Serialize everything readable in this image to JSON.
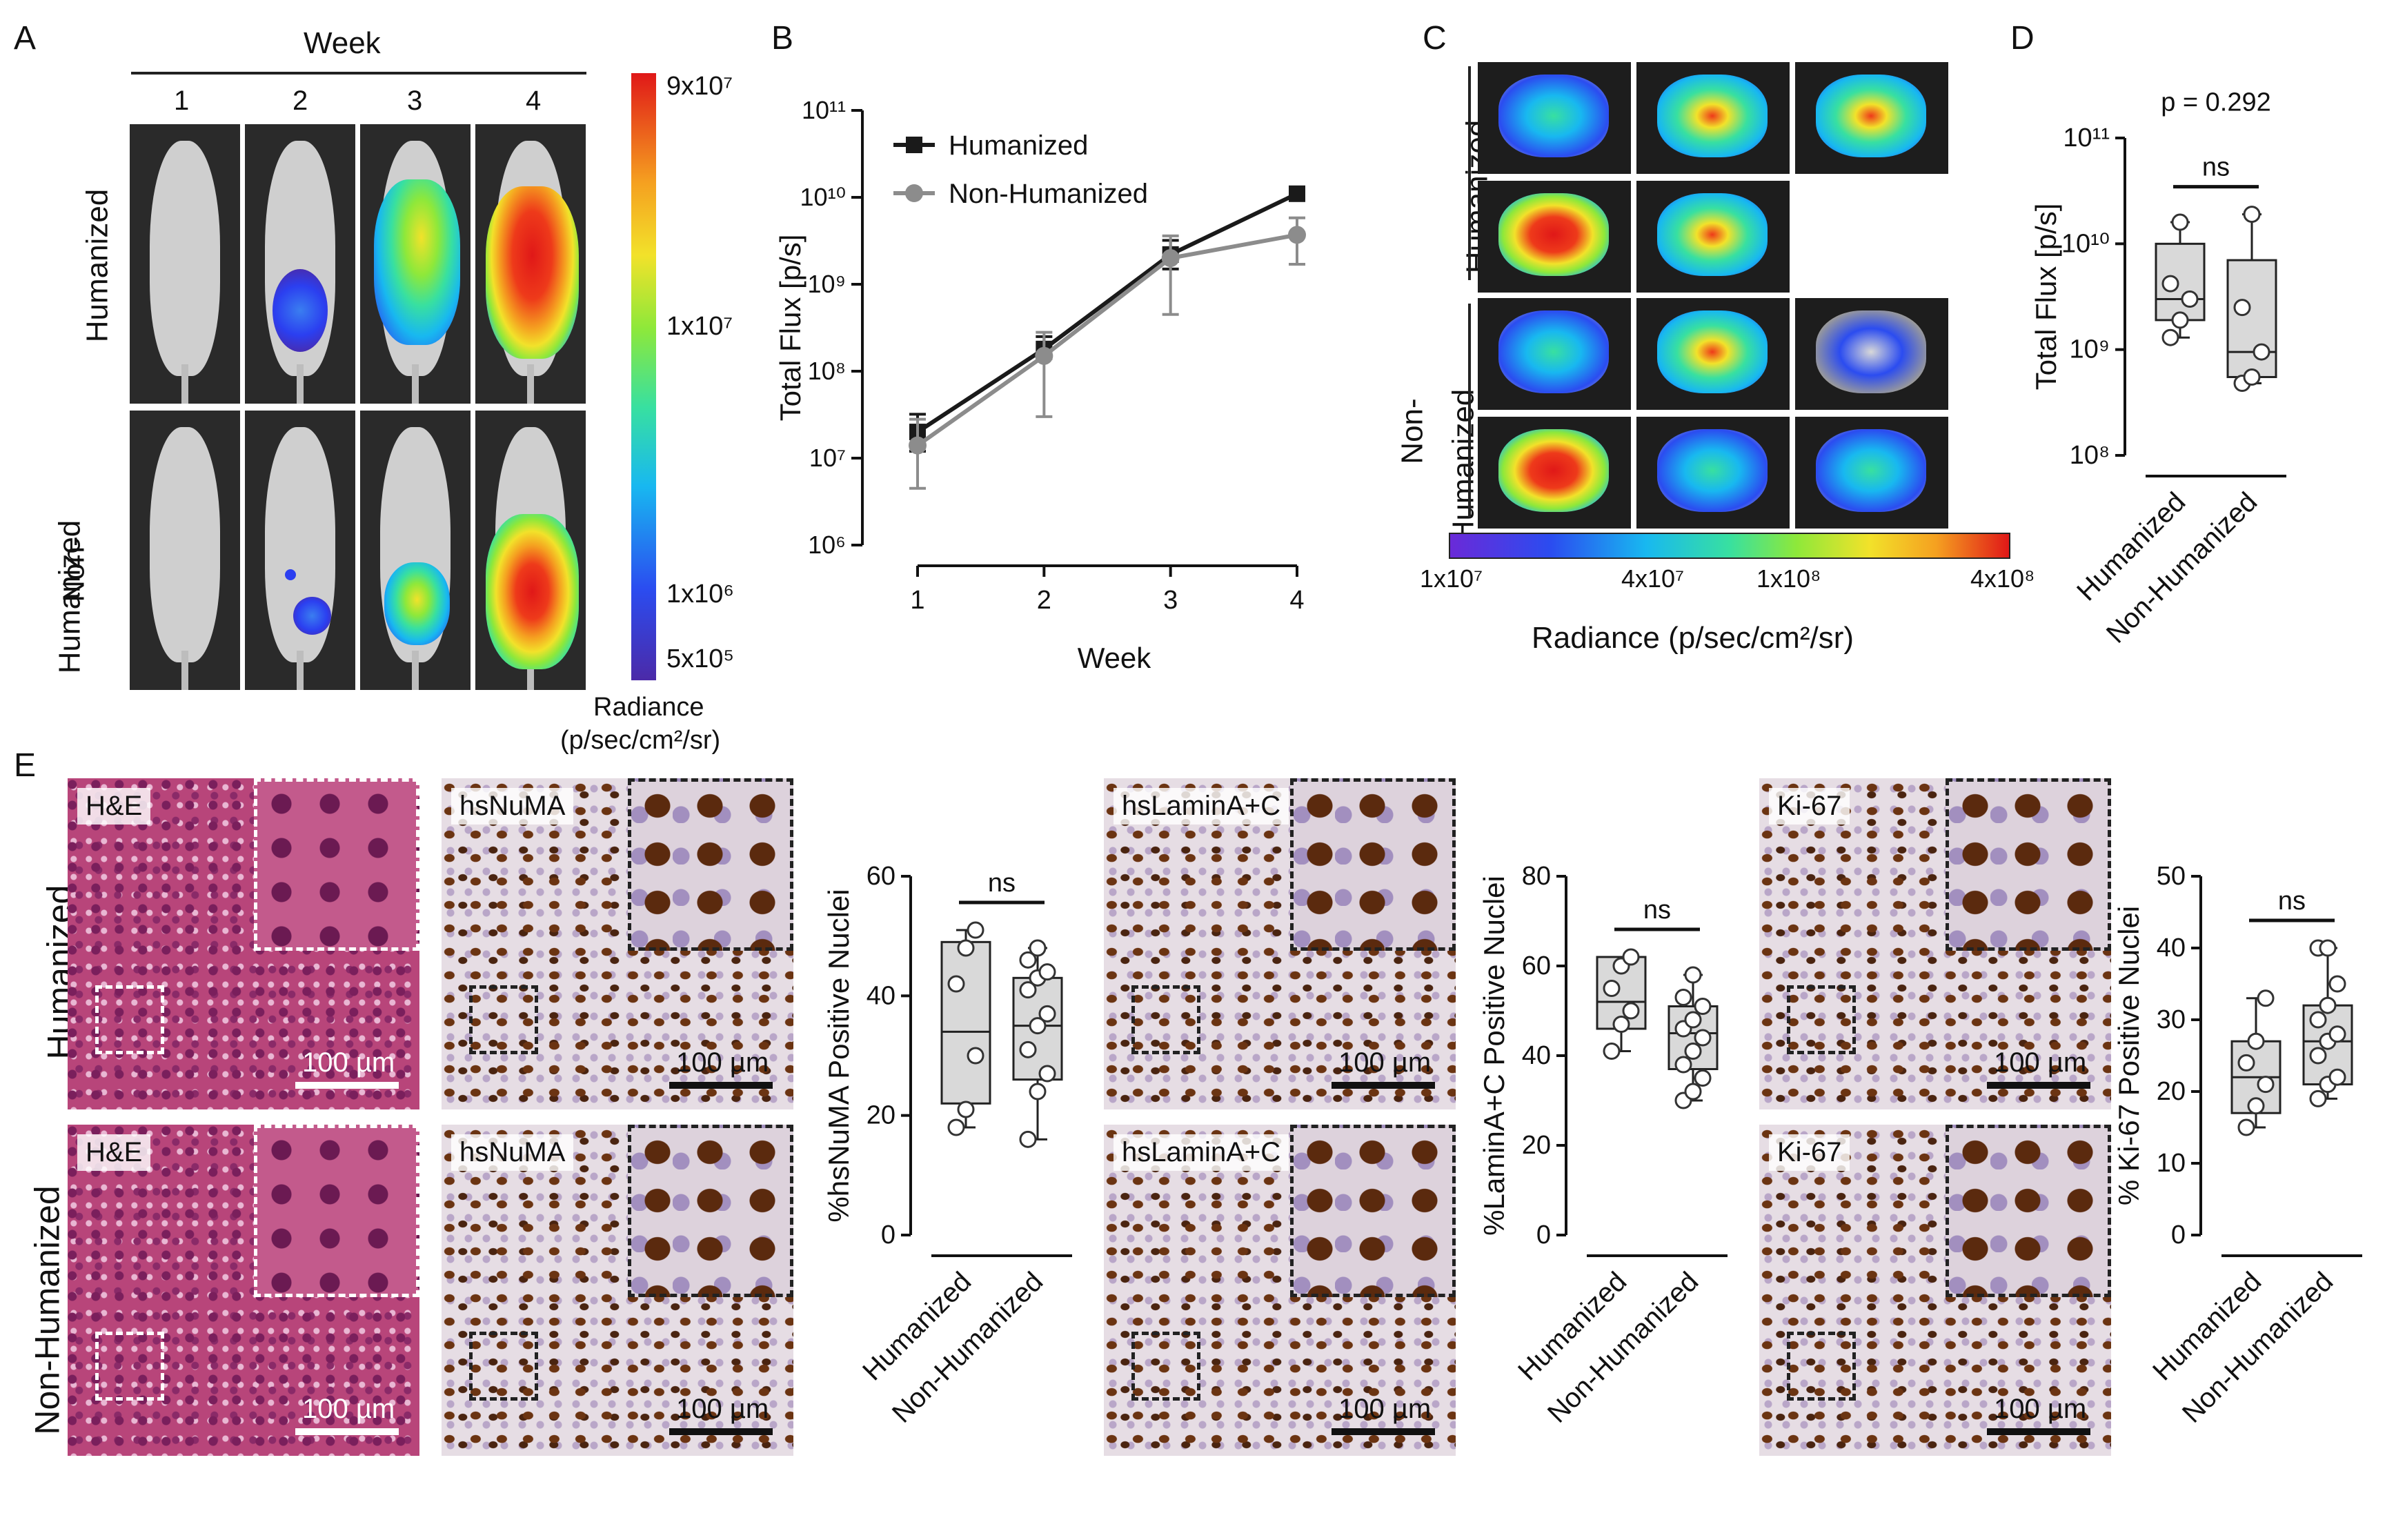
{
  "panels": {
    "A": "A",
    "B": "B",
    "C": "C",
    "D": "D",
    "E": "E"
  },
  "panelA": {
    "week_header": "Week",
    "weeks": [
      "1",
      "2",
      "3",
      "4"
    ],
    "rows": [
      "Humanized",
      "Non-\nHumanized"
    ],
    "row1": "Humanized",
    "row2a": "Non-",
    "row2b": "Humanized",
    "colorbar_ticks": [
      "9x10⁷",
      "1x10⁷",
      "1x10⁶",
      "5x10⁵"
    ],
    "colorbar_title1": "Radiance",
    "colorbar_title2": "(p/sec/cm²/sr)"
  },
  "panelC": {
    "row1": "Humanized",
    "row2a": "Non-",
    "row2b": "Humanized",
    "colorbar_ticks": [
      "1x10⁷",
      "4x10⁷",
      "1x10⁸",
      "4x10⁸"
    ],
    "colorbar_title": "Radiance (p/sec/cm²/sr)"
  },
  "panelE": {
    "rows": [
      "Humanized",
      "Non-Humanized"
    ],
    "stains": [
      "H&E",
      "hsNuMA",
      "hsLaminA+C",
      "Ki-67"
    ],
    "scale_bar": "100 µm"
  },
  "chart_data": [
    {
      "type": "line",
      "panel": "B",
      "xlabel": "Week",
      "ylabel": "Total Flux [p/s]",
      "x": [
        1,
        2,
        3,
        4
      ],
      "yscale": "log",
      "ylim": [
        1000000,
        100000000000
      ],
      "yticks": [
        "10⁶",
        "10⁷",
        "10⁸",
        "10⁹",
        "10¹⁰",
        "10¹¹"
      ],
      "legend_position": "top-left",
      "series": [
        {
          "name": "Humanized",
          "color": "#1a1a1a",
          "marker": "square",
          "values": [
            20000000,
            180000000,
            2200000000,
            11000000000
          ],
          "err_low": [
            12000000,
            140000000,
            1500000000,
            9500000000
          ],
          "err_high": [
            32000000,
            250000000,
            3200000000,
            12000000000
          ]
        },
        {
          "name": "Non-Humanized",
          "color": "#8c8c8c",
          "marker": "circle",
          "values": [
            14000000,
            150000000,
            2000000000,
            3700000000
          ],
          "err_low": [
            4500000,
            30000000,
            450000000,
            1700000000
          ],
          "err_high": [
            28000000,
            280000000,
            3600000000,
            5800000000
          ]
        }
      ]
    },
    {
      "type": "box",
      "panel": "D",
      "ylabel": "Total Flux [p/s]",
      "yscale": "log",
      "ylim": [
        100000000,
        100000000000
      ],
      "yticks": [
        "10⁸",
        "10⁹",
        "10¹⁰",
        "10¹¹"
      ],
      "categories": [
        "Humanized",
        "Non-Humanized"
      ],
      "annotation": "p = 0.292",
      "significance": "ns",
      "boxes": [
        {
          "min": 1300000000,
          "q1": 1900000000,
          "median": 3000000000,
          "q3": 10000000000,
          "max": 16000000000,
          "points": [
            1300000000,
            1900000000,
            3000000000,
            4200000000,
            16000000000
          ]
        },
        {
          "min": 480000000,
          "q1": 550000000,
          "median": 950000000,
          "q3": 7000000000,
          "max": 19000000000,
          "points": [
            480000000,
            550000000,
            950000000,
            2500000000,
            19000000000
          ]
        }
      ]
    },
    {
      "type": "box",
      "panel": "E-hsNuMA",
      "ylabel": "%hsNuMA Positive Nuclei",
      "ylim": [
        0,
        60
      ],
      "yticks": [
        "0",
        "20",
        "40",
        "60"
      ],
      "categories": [
        "Humanized",
        "Non-Humanized"
      ],
      "significance": "ns",
      "boxes": [
        {
          "min": 18,
          "q1": 22,
          "median": 34,
          "q3": 49,
          "max": 51,
          "points": [
            18,
            21,
            30,
            42,
            48,
            51
          ]
        },
        {
          "min": 16,
          "q1": 26,
          "median": 35,
          "q3": 43,
          "max": 48,
          "points": [
            16,
            24,
            27,
            31,
            35,
            37,
            41,
            43,
            44,
            46,
            48
          ]
        }
      ]
    },
    {
      "type": "box",
      "panel": "E-hsLaminA+C",
      "ylabel": "%LaminA+C Positive Nuclei",
      "ylim": [
        0,
        80
      ],
      "yticks": [
        "0",
        "20",
        "40",
        "60",
        "80"
      ],
      "categories": [
        "Humanized",
        "Non-Humanized"
      ],
      "significance": "ns",
      "boxes": [
        {
          "min": 41,
          "q1": 46,
          "median": 52,
          "q3": 62,
          "max": 62,
          "points": [
            41,
            47,
            50,
            55,
            60,
            62
          ]
        },
        {
          "min": 30,
          "q1": 37,
          "median": 45,
          "q3": 51,
          "max": 58,
          "points": [
            30,
            32,
            35,
            38,
            41,
            44,
            46,
            48,
            51,
            53,
            58
          ]
        }
      ]
    },
    {
      "type": "box",
      "panel": "E-Ki-67",
      "ylabel": "% Ki-67 Positive Nuclei",
      "ylim": [
        0,
        50
      ],
      "yticks": [
        "0",
        "10",
        "20",
        "30",
        "40",
        "50"
      ],
      "categories": [
        "Humanized",
        "Non-Humanized"
      ],
      "significance": "ns",
      "boxes": [
        {
          "min": 15,
          "q1": 17,
          "median": 22,
          "q3": 27,
          "max": 33,
          "points": [
            15,
            18,
            21,
            24,
            27,
            33
          ]
        },
        {
          "min": 19,
          "q1": 21,
          "median": 27,
          "q3": 32,
          "max": 40,
          "points": [
            19,
            21,
            22,
            25,
            27,
            28,
            30,
            32,
            35,
            40,
            40
          ]
        }
      ]
    }
  ],
  "colors": {
    "heat": [
      "#4b2aa8",
      "#2b4cf0",
      "#18b8f0",
      "#38e0a0",
      "#8ee83a",
      "#f2e22a",
      "#f5a020",
      "#ee3a1a",
      "#e01818"
    ],
    "he_stain": "#b8457a",
    "ihc_brown": "#6b3412",
    "ihc_blue": "#b9a6c8",
    "box_fill": "#d9d9d9"
  }
}
